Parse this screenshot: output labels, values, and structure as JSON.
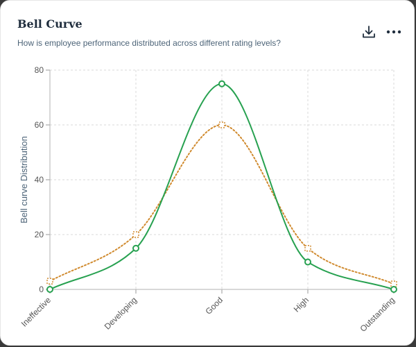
{
  "card": {
    "title": "Bell Curve",
    "subtitle": "How is employee performance distributed across different rating levels?",
    "icons": {
      "download": "download-icon",
      "more": "more-options-icon"
    }
  },
  "colors": {
    "series_solid": "#27a150",
    "series_dotted": "#d08a2e",
    "grid": "#d9d9d9",
    "axis_text": "#555555",
    "ylabel_text": "#4d6478"
  },
  "chart_data": {
    "type": "line",
    "categories": [
      "Ineffective",
      "Developing",
      "Good",
      "High",
      "Outstanding"
    ],
    "series": [
      {
        "values": [
          0,
          15,
          75,
          10,
          0
        ],
        "style": "solid",
        "marker": "circle"
      },
      {
        "values": [
          3,
          20,
          60,
          15,
          2
        ],
        "style": "dotted",
        "marker": "square"
      }
    ],
    "xlabel": "",
    "ylabel": "Bell curve Distribution",
    "ylim": [
      0,
      80
    ],
    "yticks": [
      0,
      20,
      40,
      60,
      80
    ],
    "grid": true,
    "smooth": true
  }
}
